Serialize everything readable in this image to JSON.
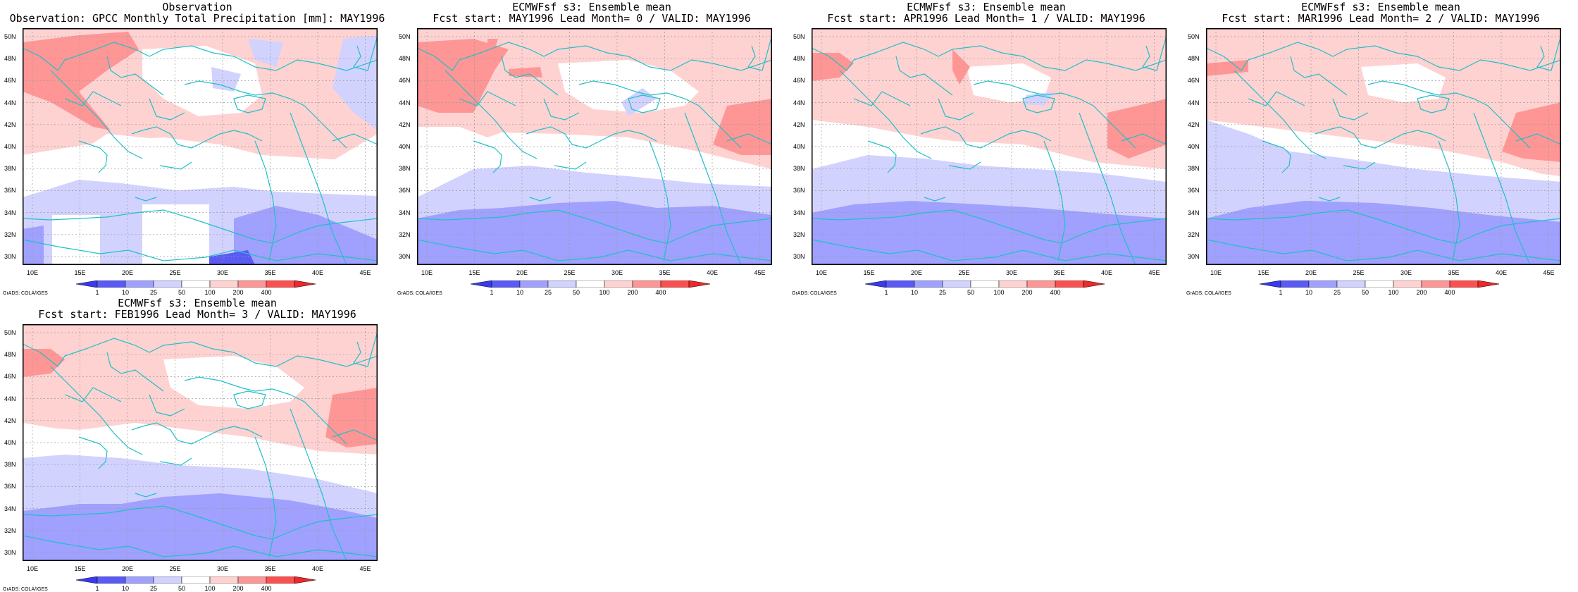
{
  "figure": {
    "panels": [
      {
        "id": "obs",
        "title1": "Observation",
        "title2": "Observation: GPCC Monthly Total Precipitation [mm]: MAY1996",
        "variant": "obs"
      },
      {
        "id": "lead0",
        "title1": "ECMWFsf s3: Ensemble mean",
        "title2": "Fcst start: MAY1996  Lead Month= 0 / VALID: MAY1996",
        "variant": "lead0"
      },
      {
        "id": "lead1",
        "title1": "ECMWFsf s3: Ensemble mean",
        "title2": "Fcst start: APR1996  Lead Month= 1 / VALID: MAY1996",
        "variant": "lead1"
      },
      {
        "id": "lead2",
        "title1": "ECMWFsf s3: Ensemble mean",
        "title2": "Fcst start: MAR1996  Lead Month= 2 / VALID: MAY1996",
        "variant": "lead2"
      },
      {
        "id": "lead3",
        "title1": "ECMWFsf s3: Ensemble mean",
        "title2": "Fcst start: FEB1996  Lead Month= 3 / VALID: MAY1996",
        "variant": "lead3"
      }
    ],
    "lat_labels": [
      "50N",
      "48N",
      "46N",
      "44N",
      "42N",
      "40N",
      "38N",
      "36N",
      "34N",
      "32N",
      "30N"
    ],
    "lon_labels": [
      "10E",
      "15E",
      "20E",
      "25E",
      "30E",
      "35E",
      "40E",
      "45E"
    ],
    "colorbar_labels": [
      "1",
      "10",
      "25",
      "50",
      "100",
      "200",
      "400"
    ],
    "credit": "GrADS: COLA/IGES",
    "colors": {
      "low_dark": "#5a5af5",
      "low_mid": "#a0a0ff",
      "low_light": "#d2d2ff",
      "white": "#ffffff",
      "high_light": "#ffd2d2",
      "high_mid": "#ff9696",
      "high_dark": "#fa5050",
      "coast": "#20c0c8"
    }
  }
}
